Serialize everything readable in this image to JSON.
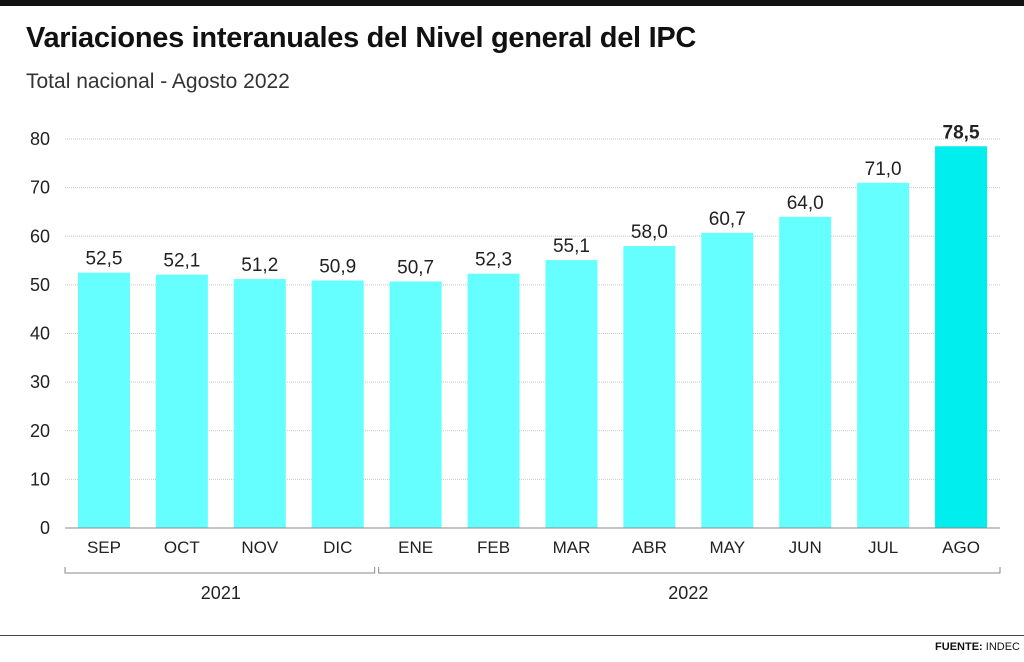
{
  "header": {
    "title": "Variaciones interanuales del Nivel general del IPC",
    "subtitle": "Total nacional - Agosto 2022"
  },
  "source": {
    "label": "FUENTE:",
    "value": "INDEC"
  },
  "colors": {
    "bar": "#66ffff",
    "bar_highlight": "#00eeee",
    "grid": "#c8c8c8",
    "text": "#222222"
  },
  "chart_data": {
    "type": "bar",
    "title": "Variaciones interanuales del Nivel general del IPC",
    "subtitle": "Total nacional - Agosto 2022",
    "categories": [
      "SEP",
      "OCT",
      "NOV",
      "DIC",
      "ENE",
      "FEB",
      "MAR",
      "ABR",
      "MAY",
      "JUN",
      "JUL",
      "AGO"
    ],
    "values": [
      52.5,
      52.1,
      51.2,
      50.9,
      50.7,
      52.3,
      55.1,
      58.0,
      60.7,
      64.0,
      71.0,
      78.5
    ],
    "value_labels": [
      "52,5",
      "52,1",
      "51,2",
      "50,9",
      "50,7",
      "52,3",
      "55,1",
      "58,0",
      "60,7",
      "64,0",
      "71,0",
      "78,5"
    ],
    "highlight_index": 11,
    "year_groups": [
      {
        "label": "2021",
        "start": 0,
        "end": 3
      },
      {
        "label": "2022",
        "start": 4,
        "end": 11
      }
    ],
    "yticks": [
      0,
      10,
      20,
      30,
      40,
      50,
      60,
      70,
      80
    ],
    "ylim": [
      0,
      80
    ],
    "xlabel": "",
    "ylabel": "",
    "grid": true,
    "legend": "none"
  }
}
